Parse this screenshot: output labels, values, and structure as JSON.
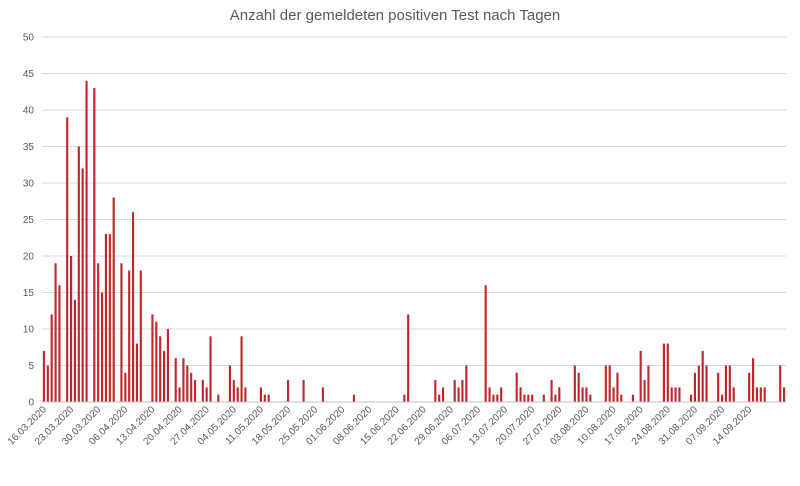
{
  "chart_data": {
    "type": "bar",
    "title": "Anzahl der gemeldeten positiven Test nach Tagen",
    "xlabel": "",
    "ylabel": "",
    "ylim": [
      0,
      50
    ],
    "yticks": [
      0,
      5,
      10,
      15,
      20,
      25,
      30,
      35,
      40,
      45,
      50
    ],
    "grid": true,
    "legend": "none",
    "bar_color": "#c0262b",
    "start_date": "16.03.2020",
    "tick_labels": [
      "16.03.2020",
      "23.03.2020",
      "30.03.2020",
      "06.04.2020",
      "13.04.2020",
      "20.04.2020",
      "27.04.2020",
      "04.05.2020",
      "11.05.2020",
      "18.05.2020",
      "25.05.2020",
      "01.06.2020",
      "08.06.2020",
      "15.06.2020",
      "22.06.2020",
      "29.06.2020",
      "06.07.2020",
      "13.07.2020",
      "20.07.2020",
      "27.07.2020",
      "03.08.2020",
      "10.08.2020",
      "17.08.2020",
      "24.08.2020",
      "31.08.2020",
      "07.09.2020",
      "14.09.2020"
    ],
    "values": [
      7,
      5,
      12,
      19,
      16,
      0,
      39,
      20,
      14,
      35,
      32,
      44,
      0,
      43,
      19,
      15,
      23,
      23,
      28,
      0,
      19,
      4,
      18,
      26,
      8,
      18,
      0,
      0,
      12,
      11,
      9,
      7,
      10,
      0,
      6,
      2,
      6,
      5,
      4,
      3,
      0,
      3,
      2,
      9,
      0,
      1,
      0,
      0,
      5,
      3,
      2,
      9,
      2,
      0,
      0,
      0,
      2,
      1,
      1,
      0,
      0,
      0,
      0,
      3,
      0,
      0,
      0,
      3,
      0,
      0,
      0,
      0,
      2,
      0,
      0,
      0,
      0,
      0,
      0,
      0,
      1,
      0,
      0,
      0,
      0,
      0,
      0,
      0,
      0,
      0,
      0,
      0,
      0,
      1,
      12,
      0,
      0,
      0,
      0,
      0,
      0,
      3,
      1,
      2,
      0,
      0,
      3,
      2,
      3,
      5,
      0,
      0,
      0,
      0,
      16,
      2,
      1,
      1,
      2,
      0,
      0,
      0,
      4,
      2,
      1,
      1,
      1,
      0,
      0,
      1,
      0,
      3,
      1,
      2,
      0,
      0,
      0,
      5,
      4,
      2,
      2,
      1,
      0,
      0,
      0,
      5,
      5,
      2,
      4,
      1,
      0,
      0,
      1,
      0,
      7,
      3,
      5,
      0,
      0,
      0,
      8,
      8,
      2,
      2,
      2,
      0,
      0,
      1,
      4,
      5,
      7,
      5,
      0,
      0,
      4,
      1,
      5,
      5,
      2,
      0,
      0,
      0,
      4,
      6,
      2,
      2,
      2,
      0,
      0,
      0,
      5,
      2
    ]
  }
}
